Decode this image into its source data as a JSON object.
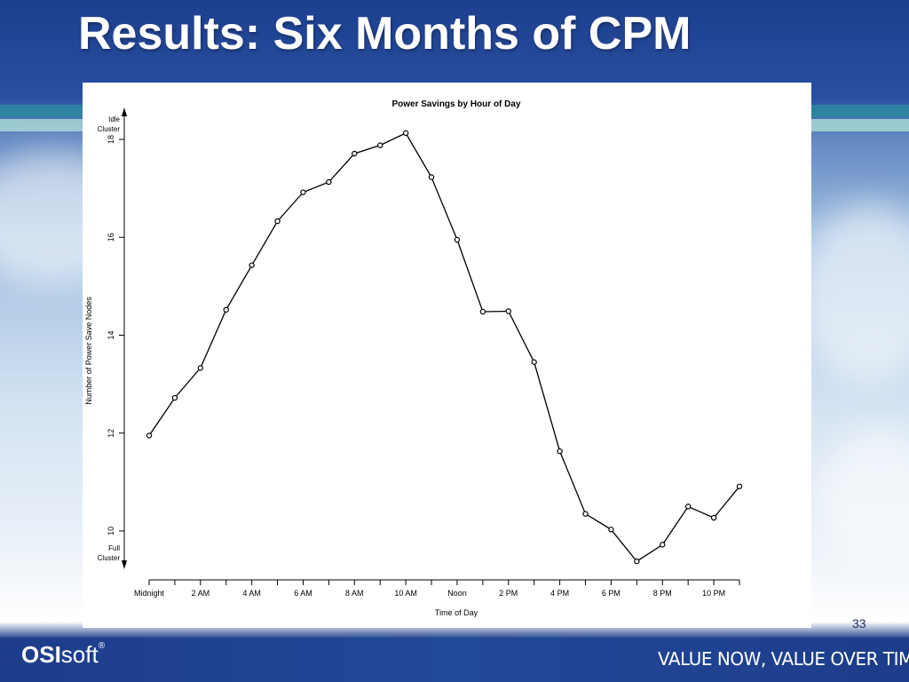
{
  "slide": {
    "title": "Results: Six Months of CPM",
    "number": "33",
    "logo_bold": "OSI",
    "logo_light": "soft",
    "logo_mark": "®",
    "tagline": "VALUE NOW, VALUE OVER TIME",
    "colors": {
      "header_blue": "#1c3f8f",
      "teal_band": "#2a8aa0",
      "footer_blue": "#1d3d8a"
    }
  },
  "chart_data": {
    "type": "line",
    "title": "Power Savings by Hour of Day",
    "xlabel": "Time of Day",
    "ylabel": "Number of Power Save Nodes",
    "arrow_label_top": "Idle\nCluster",
    "arrow_label_bottom": "Full\nCluster",
    "x": [
      0,
      1,
      2,
      3,
      4,
      5,
      6,
      7,
      8,
      9,
      10,
      11,
      12,
      13,
      14,
      15,
      16,
      17,
      18,
      19,
      20,
      21,
      22,
      23
    ],
    "values": [
      11.95,
      12.72,
      13.33,
      14.52,
      15.43,
      16.33,
      16.92,
      17.13,
      17.71,
      17.88,
      18.13,
      17.23,
      15.95,
      14.48,
      14.49,
      13.45,
      11.63,
      10.35,
      10.03,
      9.38,
      9.72,
      10.5,
      10.27,
      10.91
    ],
    "xlim": [
      0,
      23
    ],
    "ylim": [
      9.4,
      18.2
    ],
    "y_ticks": [
      10,
      12,
      14,
      16,
      18
    ],
    "x_tick_positions": [
      0,
      2,
      4,
      6,
      8,
      10,
      12,
      14,
      16,
      18,
      20,
      22
    ],
    "x_tick_labels": [
      "Midnight",
      "2 AM",
      "4 AM",
      "6 AM",
      "8 AM",
      "10 AM",
      "Noon",
      "2 PM",
      "4 PM",
      "6 PM",
      "8 PM",
      "10 PM"
    ],
    "grid": false,
    "legend": "none"
  }
}
